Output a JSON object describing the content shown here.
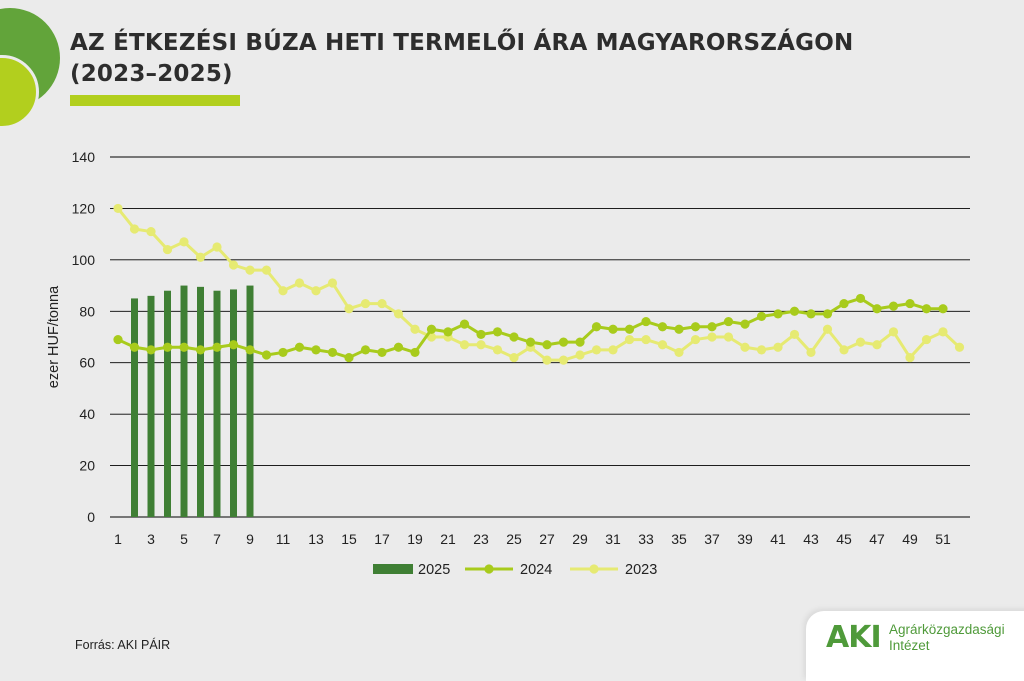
{
  "header": {
    "title_line1": "AZ ÉTKEZÉSI BÚZA HETI TERMELŐI ÁRA MAGYARORSZÁGON",
    "title_line2": "(2023–2025)"
  },
  "footer": {
    "source": "Forrás: AKI PÁIR",
    "logo_mark": "AKI",
    "logo_line1": "Agrárközgazdasági",
    "logo_line2": "Intézet"
  },
  "colors": {
    "s2025": "#3f7f34",
    "s2024": "#a8cb1c",
    "s2023": "#e6ea72",
    "grid": "#000000",
    "accent": "#b2cf1e"
  },
  "chart_data": {
    "type": "bar+line",
    "ylabel": "ezer HUF/tonna",
    "xlabel": "",
    "ylim": [
      0,
      140
    ],
    "yticks": [
      0,
      20,
      40,
      60,
      80,
      100,
      120,
      140
    ],
    "xlim": [
      1,
      52
    ],
    "xticks": [
      1,
      3,
      5,
      7,
      9,
      11,
      13,
      15,
      17,
      19,
      21,
      23,
      25,
      27,
      29,
      31,
      33,
      35,
      37,
      39,
      41,
      43,
      45,
      47,
      49,
      51
    ],
    "grid": "horizontal",
    "legend_position": "bottom",
    "series": [
      {
        "name": "2025",
        "type": "bar",
        "x": [
          2,
          3,
          4,
          5,
          6,
          7,
          8,
          9
        ],
        "values": [
          85,
          86,
          88,
          90,
          89.5,
          88,
          88.5,
          90
        ]
      },
      {
        "name": "2024",
        "type": "line",
        "x": [
          1,
          2,
          3,
          4,
          5,
          6,
          7,
          8,
          9,
          10,
          11,
          12,
          13,
          14,
          15,
          16,
          17,
          18,
          19,
          20,
          21,
          22,
          23,
          24,
          25,
          26,
          27,
          28,
          29,
          30,
          31,
          32,
          33,
          34,
          35,
          36,
          37,
          38,
          39,
          40,
          41,
          42,
          43,
          44,
          45,
          46,
          47,
          48,
          49,
          50,
          51
        ],
        "values": [
          69,
          66,
          65,
          66,
          66,
          65,
          66,
          67,
          65,
          63,
          64,
          66,
          65,
          64,
          62,
          65,
          64,
          66,
          64,
          73,
          72,
          75,
          71,
          72,
          70,
          68,
          67,
          68,
          68,
          74,
          73,
          73,
          76,
          74,
          73,
          74,
          74,
          76,
          75,
          78,
          79,
          80,
          79,
          79,
          83,
          85,
          81,
          82,
          83,
          81,
          81
        ]
      },
      {
        "name": "2023",
        "type": "line",
        "x": [
          1,
          2,
          3,
          4,
          5,
          6,
          7,
          8,
          9,
          10,
          11,
          12,
          13,
          14,
          15,
          16,
          17,
          18,
          19,
          20,
          21,
          22,
          23,
          24,
          25,
          26,
          27,
          28,
          29,
          30,
          31,
          32,
          33,
          34,
          35,
          36,
          37,
          38,
          39,
          40,
          41,
          42,
          43,
          44,
          45,
          46,
          47,
          48,
          49,
          50,
          51,
          52
        ],
        "values": [
          120,
          112,
          111,
          104,
          107,
          101,
          105,
          98,
          96,
          96,
          88,
          91,
          88,
          91,
          81,
          83,
          83,
          79,
          73,
          70,
          70,
          67,
          67,
          65,
          62,
          66,
          61,
          61,
          63,
          65,
          65,
          69,
          69,
          67,
          64,
          69,
          70,
          70,
          66,
          65,
          66,
          71,
          64,
          73,
          65,
          68,
          67,
          72,
          62,
          69,
          72,
          66
        ]
      }
    ]
  }
}
